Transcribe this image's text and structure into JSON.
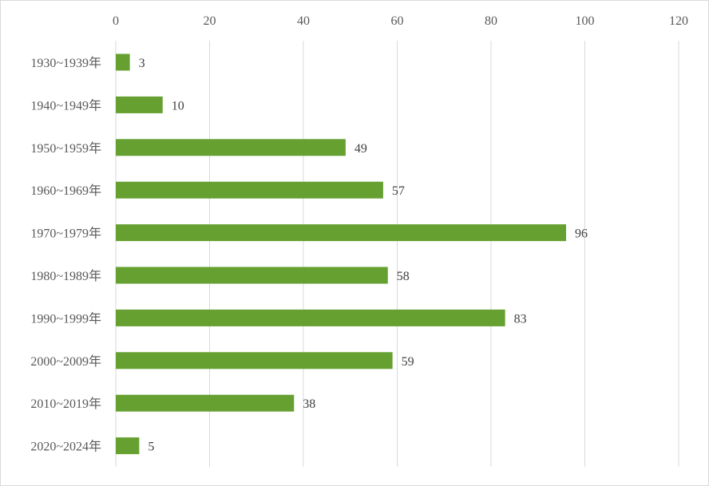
{
  "chart_data": {
    "type": "bar",
    "orientation": "horizontal",
    "categories": [
      "1930~1939年",
      "1940~1949年",
      "1950~1959年",
      "1960~1969年",
      "1970~1979年",
      "1980~1989年",
      "1990~1999年",
      "2000~2009年",
      "2010~2019年",
      "2020~2024年"
    ],
    "values": [
      3,
      10,
      49,
      57,
      96,
      58,
      83,
      59,
      38,
      5
    ],
    "xlim": [
      0,
      120
    ],
    "x_ticks": [
      0,
      20,
      40,
      60,
      80,
      100,
      120
    ],
    "x_axis_position": "top",
    "grid": true,
    "data_labels": true,
    "bar_color": "#65a030",
    "grid_color": "#d9d9d9"
  }
}
